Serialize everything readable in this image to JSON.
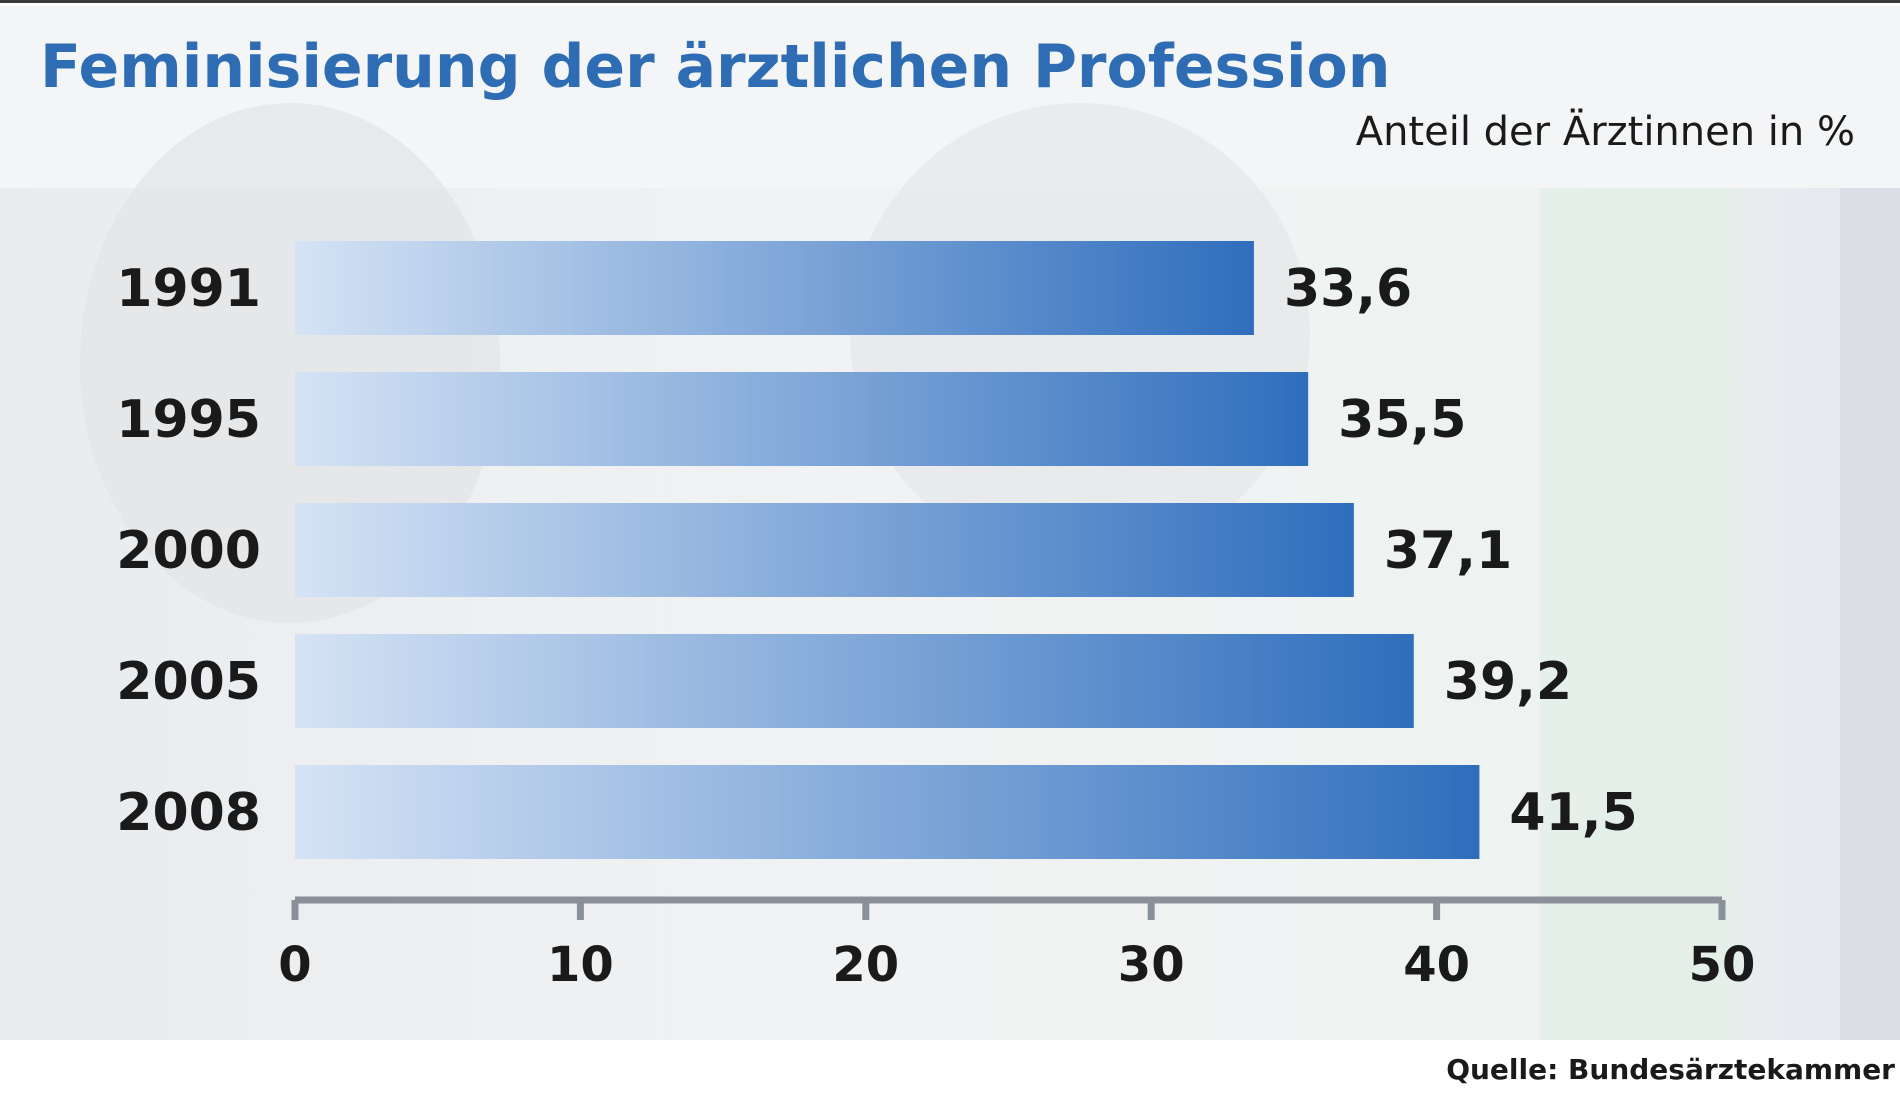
{
  "chart_data": {
    "type": "bar",
    "orientation": "horizontal",
    "title": "Feminisierung der ärztlichen Profession",
    "subtitle": "Anteil der Ärztinnen in %",
    "source": "Quelle: Bundesärztekammer",
    "categories": [
      "1991",
      "1995",
      "2000",
      "2005",
      "2008"
    ],
    "values": [
      33.6,
      35.5,
      37.1,
      39.2,
      41.5
    ],
    "value_labels": [
      "33,6",
      "35,5",
      "37,1",
      "39,2",
      "41,5"
    ],
    "xlim": [
      0,
      50
    ],
    "ticks": [
      0,
      10,
      20,
      30,
      40,
      50
    ],
    "tick_labels": [
      "0",
      "10",
      "20",
      "30",
      "40",
      "50"
    ],
    "grid": false,
    "legend": "none",
    "colors": {
      "title": "#2e6db4",
      "bar_start": "#d5e3f5",
      "bar_end": "#2f6ebd",
      "text": "#1a1a1a",
      "axis": "#8a9099"
    }
  }
}
